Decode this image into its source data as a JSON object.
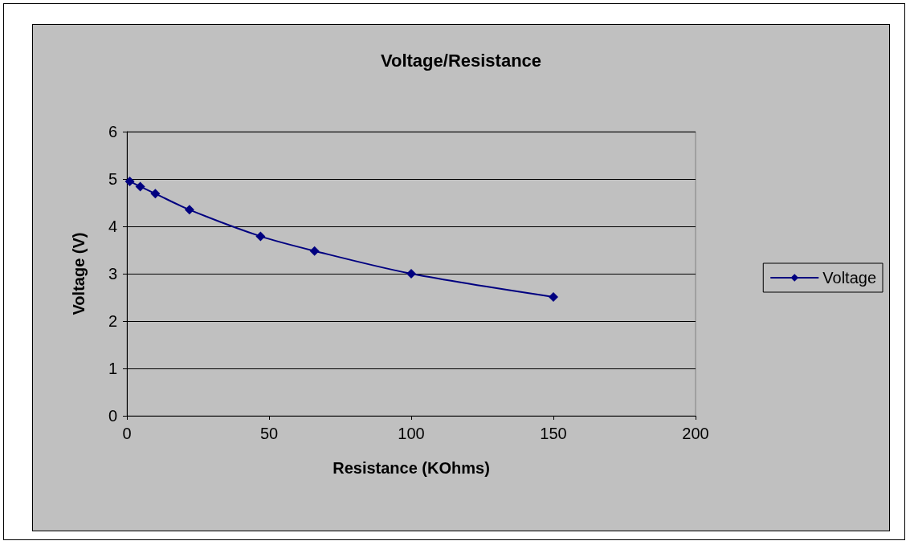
{
  "chart_data": {
    "type": "line",
    "title": "Voltage/Resistance",
    "xlabel": "Resistance (KOhms)",
    "ylabel": "Voltage (V)",
    "series": [
      {
        "name": "Voltage",
        "color": "#000080",
        "x": [
          1,
          4.7,
          10,
          22,
          47,
          66,
          100,
          150
        ],
        "values": [
          4.95,
          4.84,
          4.69,
          4.35,
          3.79,
          3.48,
          3.0,
          2.51
        ]
      }
    ],
    "xlim": [
      0,
      200
    ],
    "xticks": [
      0,
      50,
      100,
      150,
      200
    ],
    "ylim": [
      0,
      6
    ],
    "yticks": [
      0,
      1,
      2,
      3,
      4,
      5,
      6
    ],
    "grid": "y",
    "legend": "right",
    "marker": "diamond",
    "line_style": "solid"
  }
}
